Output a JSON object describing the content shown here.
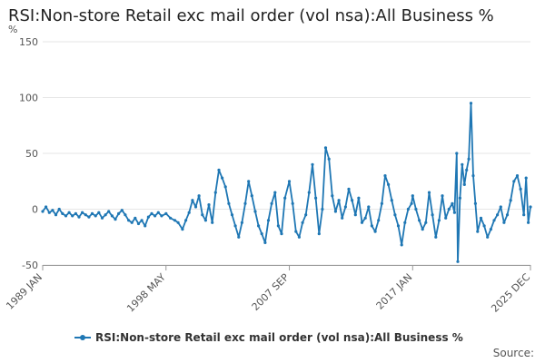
{
  "chart_data": {
    "type": "line",
    "title": "RSI:Non-store Retail exc mail order (vol nsa):All Business %",
    "ylabel": "%",
    "ylim": [
      -50,
      150
    ],
    "y_ticks": [
      150,
      100,
      50,
      0,
      -50
    ],
    "x_range": [
      "1989-01",
      "2025-12"
    ],
    "x_ticks": [
      "1989 JAN",
      "1998 MAY",
      "2007 SEP",
      "2017 JAN",
      "2025 DEC"
    ],
    "grid": true,
    "legend_position": "bottom",
    "source_label": "Source:",
    "colors": {
      "series": "#1f77b4",
      "grid": "#e6e6e6",
      "axis": "#999999",
      "text": "#555555"
    },
    "series": [
      {
        "name": "RSI:Non-store Retail exc mail order (vol nsa):All Business %",
        "points": [
          [
            "1989-01",
            -2
          ],
          [
            "1989-04",
            2
          ],
          [
            "1989-07",
            -3
          ],
          [
            "1989-10",
            -1
          ],
          [
            "1990-01",
            -5
          ],
          [
            "1990-04",
            0
          ],
          [
            "1990-07",
            -4
          ],
          [
            "1990-10",
            -6
          ],
          [
            "1991-01",
            -3
          ],
          [
            "1991-04",
            -6
          ],
          [
            "1991-07",
            -4
          ],
          [
            "1991-10",
            -7
          ],
          [
            "1992-01",
            -3
          ],
          [
            "1992-04",
            -5
          ],
          [
            "1992-07",
            -7
          ],
          [
            "1992-10",
            -4
          ],
          [
            "1993-01",
            -6
          ],
          [
            "1993-04",
            -3
          ],
          [
            "1993-07",
            -8
          ],
          [
            "1993-10",
            -5
          ],
          [
            "1994-01",
            -2
          ],
          [
            "1994-04",
            -6
          ],
          [
            "1994-07",
            -9
          ],
          [
            "1994-10",
            -4
          ],
          [
            "1995-01",
            -1
          ],
          [
            "1995-04",
            -5
          ],
          [
            "1995-07",
            -10
          ],
          [
            "1995-10",
            -12
          ],
          [
            "1996-01",
            -8
          ],
          [
            "1996-04",
            -13
          ],
          [
            "1996-07",
            -10
          ],
          [
            "1996-10",
            -15
          ],
          [
            "1997-01",
            -7
          ],
          [
            "1997-04",
            -4
          ],
          [
            "1997-07",
            -6
          ],
          [
            "1997-10",
            -3
          ],
          [
            "1998-01",
            -6
          ],
          [
            "1998-05",
            -4
          ],
          [
            "1998-09",
            -8
          ],
          [
            "1999-01",
            -10
          ],
          [
            "1999-04",
            -12
          ],
          [
            "1999-08",
            -18
          ],
          [
            "1999-11",
            -10
          ],
          [
            "2000-02",
            -3
          ],
          [
            "2000-05",
            8
          ],
          [
            "2000-08",
            2
          ],
          [
            "2000-11",
            12
          ],
          [
            "2001-02",
            -5
          ],
          [
            "2001-05",
            -10
          ],
          [
            "2001-08",
            4
          ],
          [
            "2001-11",
            -12
          ],
          [
            "2002-02",
            15
          ],
          [
            "2002-05",
            35
          ],
          [
            "2002-08",
            28
          ],
          [
            "2002-11",
            20
          ],
          [
            "2003-02",
            5
          ],
          [
            "2003-05",
            -5
          ],
          [
            "2003-08",
            -15
          ],
          [
            "2003-11",
            -25
          ],
          [
            "2004-02",
            -12
          ],
          [
            "2004-05",
            5
          ],
          [
            "2004-08",
            25
          ],
          [
            "2004-11",
            12
          ],
          [
            "2005-02",
            -2
          ],
          [
            "2005-05",
            -15
          ],
          [
            "2005-08",
            -22
          ],
          [
            "2005-11",
            -30
          ],
          [
            "2006-02",
            -10
          ],
          [
            "2006-05",
            5
          ],
          [
            "2006-08",
            15
          ],
          [
            "2006-11",
            -15
          ],
          [
            "2007-02",
            -22
          ],
          [
            "2007-05",
            10
          ],
          [
            "2007-09",
            25
          ],
          [
            "2007-12",
            5
          ],
          [
            "2008-03",
            -20
          ],
          [
            "2008-06",
            -25
          ],
          [
            "2008-09",
            -12
          ],
          [
            "2008-12",
            -5
          ],
          [
            "2009-03",
            15
          ],
          [
            "2009-06",
            40
          ],
          [
            "2009-09",
            10
          ],
          [
            "2009-12",
            -22
          ],
          [
            "2010-03",
            0
          ],
          [
            "2010-06",
            55
          ],
          [
            "2010-09",
            45
          ],
          [
            "2010-12",
            12
          ],
          [
            "2011-03",
            -2
          ],
          [
            "2011-06",
            8
          ],
          [
            "2011-09",
            -8
          ],
          [
            "2011-12",
            2
          ],
          [
            "2012-03",
            18
          ],
          [
            "2012-06",
            8
          ],
          [
            "2012-09",
            -5
          ],
          [
            "2012-12",
            10
          ],
          [
            "2013-03",
            -12
          ],
          [
            "2013-06",
            -8
          ],
          [
            "2013-09",
            2
          ],
          [
            "2013-12",
            -15
          ],
          [
            "2014-03",
            -20
          ],
          [
            "2014-06",
            -10
          ],
          [
            "2014-09",
            5
          ],
          [
            "2014-12",
            30
          ],
          [
            "2015-03",
            22
          ],
          [
            "2015-06",
            8
          ],
          [
            "2015-09",
            -5
          ],
          [
            "2015-12",
            -15
          ],
          [
            "2016-03",
            -32
          ],
          [
            "2016-06",
            -12
          ],
          [
            "2016-09",
            0
          ],
          [
            "2016-12",
            5
          ],
          [
            "2017-01",
            12
          ],
          [
            "2017-04",
            0
          ],
          [
            "2017-07",
            -10
          ],
          [
            "2017-10",
            -18
          ],
          [
            "2018-01",
            -12
          ],
          [
            "2018-04",
            15
          ],
          [
            "2018-07",
            -5
          ],
          [
            "2018-10",
            -25
          ],
          [
            "2019-01",
            -10
          ],
          [
            "2019-04",
            12
          ],
          [
            "2019-07",
            -8
          ],
          [
            "2019-10",
            0
          ],
          [
            "2020-01",
            5
          ],
          [
            "2020-03",
            -3
          ],
          [
            "2020-05",
            50
          ],
          [
            "2020-06",
            -47
          ],
          [
            "2020-08",
            10
          ],
          [
            "2020-10",
            40
          ],
          [
            "2020-12",
            22
          ],
          [
            "2021-02",
            35
          ],
          [
            "2021-04",
            45
          ],
          [
            "2021-06",
            95
          ],
          [
            "2021-08",
            30
          ],
          [
            "2021-10",
            5
          ],
          [
            "2021-12",
            -20
          ],
          [
            "2022-03",
            -8
          ],
          [
            "2022-06",
            -15
          ],
          [
            "2022-09",
            -25
          ],
          [
            "2022-12",
            -18
          ],
          [
            "2023-03",
            -10
          ],
          [
            "2023-06",
            -5
          ],
          [
            "2023-09",
            2
          ],
          [
            "2023-12",
            -12
          ],
          [
            "2024-03",
            -5
          ],
          [
            "2024-06",
            8
          ],
          [
            "2024-09",
            25
          ],
          [
            "2024-12",
            30
          ],
          [
            "2025-03",
            18
          ],
          [
            "2025-06",
            -5
          ],
          [
            "2025-08",
            28
          ],
          [
            "2025-10",
            -12
          ],
          [
            "2025-12",
            2
          ]
        ]
      }
    ]
  }
}
